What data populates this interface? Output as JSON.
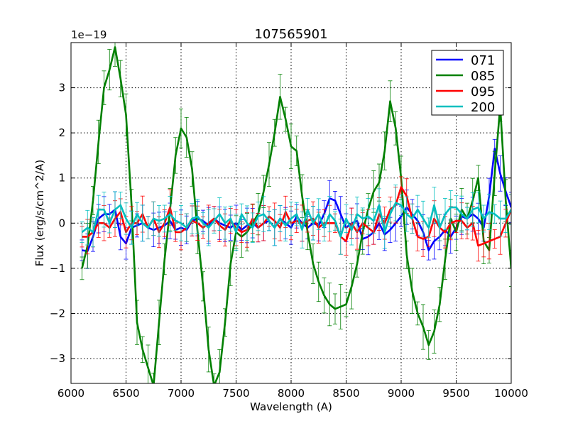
{
  "chart_data": {
    "type": "line",
    "title": "107565901",
    "xlabel": "Wavelength (A)",
    "ylabel": "Flux (erg/s/cm^2/A)",
    "y_multiplier": "1e−19",
    "xlim": [
      6000,
      10000
    ],
    "ylim": [
      -3.55,
      4.0
    ],
    "grid": true,
    "legend_position": "top-right",
    "xticks": [
      6000,
      6500,
      7000,
      7500,
      8000,
      8500,
      9000,
      9500,
      10000
    ],
    "xtick_labels": [
      "6000",
      "6500",
      "7000",
      "7500",
      "8000",
      "8500",
      "9000",
      "9500",
      "10000"
    ],
    "yticks": [
      -3,
      -2,
      -1,
      0,
      1,
      2,
      3
    ],
    "ytick_labels": [
      "−3",
      "−2",
      "−1",
      "0",
      "1",
      "2",
      "3"
    ],
    "x": [
      6100,
      6150,
      6200,
      6250,
      6300,
      6350,
      6400,
      6450,
      6500,
      6550,
      6600,
      6650,
      6700,
      6750,
      6800,
      6850,
      6900,
      6950,
      7000,
      7050,
      7100,
      7150,
      7200,
      7250,
      7300,
      7350,
      7400,
      7450,
      7500,
      7550,
      7600,
      7650,
      7700,
      7750,
      7800,
      7850,
      7900,
      7950,
      8000,
      8050,
      8100,
      8150,
      8200,
      8250,
      8300,
      8350,
      8400,
      8450,
      8500,
      8550,
      8600,
      8650,
      8700,
      8750,
      8800,
      8850,
      8900,
      8950,
      9000,
      9050,
      9100,
      9150,
      9200,
      9250,
      9300,
      9350,
      9400,
      9450,
      9500,
      9550,
      9600,
      9650,
      9700,
      9750,
      9800,
      9850,
      9900,
      9950,
      10000
    ],
    "series": [
      {
        "name": "071",
        "color": "#0000ff",
        "values": [
          -0.6,
          -0.62,
          -0.3,
          0.1,
          0.2,
          0.2,
          0.3,
          -0.3,
          -0.45,
          -0.1,
          -0.05,
          0,
          -0.1,
          -0.15,
          -0.1,
          -0.05,
          0.05,
          -0.15,
          -0.1,
          -0.15,
          0.05,
          0.1,
          0.05,
          -0.05,
          0.1,
          0,
          -0.05,
          -0.1,
          0,
          -0.15,
          -0.05,
          0,
          -0.1,
          0,
          0.05,
          -0.1,
          0.1,
          0,
          -0.1,
          0.15,
          0,
          -0.1,
          0,
          -0.05,
          0.2,
          0.55,
          0.5,
          0.2,
          -0.1,
          0,
          0.05,
          -0.35,
          -0.3,
          -0.2,
          0,
          -0.25,
          -0.15,
          0,
          0.15,
          0.35,
          0.2,
          0.05,
          -0.2,
          -0.6,
          -0.4,
          -0.3,
          -0.15,
          -0.3,
          -0.1,
          0.15,
          0.1,
          0.2,
          0.1,
          -0.1,
          0.6,
          1.65,
          1.1,
          0.7,
          0.35
        ]
      },
      {
        "name": "085",
        "color": "#008000",
        "values": [
          -1.0,
          -0.5,
          0.5,
          1.8,
          3.0,
          3.4,
          3.9,
          3.2,
          2.4,
          0.4,
          -2.2,
          -2.8,
          -3.2,
          -3.6,
          -2.2,
          -0.8,
          0.3,
          1.5,
          2.1,
          1.9,
          1.2,
          -0.2,
          -1.4,
          -2.8,
          -3.6,
          -3.3,
          -2.2,
          -0.9,
          -0.2,
          -0.3,
          -0.2,
          0,
          0.2,
          0.7,
          1.3,
          2.0,
          2.8,
          2.3,
          1.7,
          1.6,
          0.6,
          -0.2,
          -0.9,
          -1.3,
          -1.6,
          -1.8,
          -1.9,
          -1.85,
          -1.8,
          -1.4,
          -0.9,
          -0.2,
          0.3,
          0.7,
          0.9,
          1.6,
          2.7,
          2.1,
          1.0,
          -0.7,
          -1.5,
          -2.0,
          -2.3,
          -2.7,
          -2.4,
          -1.8,
          -0.8,
          0.1,
          -0.2,
          0.3,
          0.1,
          0.5,
          1.0,
          -0.4,
          -0.6,
          1.1,
          2.6,
          0.5,
          -1.0
        ]
      },
      {
        "name": "095",
        "color": "#ff0000",
        "values": [
          -0.3,
          -0.3,
          -0.2,
          0,
          0,
          -0.1,
          0.1,
          0.25,
          -0.2,
          0,
          0,
          0.2,
          -0.1,
          0.1,
          -0.2,
          0,
          0.35,
          -0.2,
          -0.2,
          -0.1,
          0.05,
          0,
          -0.1,
          0,
          0.1,
          -0.05,
          -0.15,
          0.05,
          -0.1,
          -0.2,
          -0.15,
          0.1,
          -0.1,
          0,
          0.15,
          0.05,
          -0.1,
          0.25,
          0,
          0.05,
          0,
          0.05,
          0.1,
          -0.1,
          0,
          0,
          0,
          -0.3,
          -0.4,
          0,
          -0.2,
          0,
          -0.1,
          -0.2,
          0.2,
          0,
          0.3,
          0.4,
          0.8,
          0.6,
          0.1,
          -0.3,
          -0.35,
          -0.3,
          0.1,
          -0.1,
          -0.2,
          0,
          0.05,
          0.05,
          -0.1,
          0,
          -0.5,
          -0.45,
          -0.4,
          -0.35,
          -0.3,
          0,
          0.3
        ]
      },
      {
        "name": "200",
        "color": "#00bfbf",
        "values": [
          -0.2,
          -0.1,
          -0.2,
          0.3,
          0.3,
          0,
          0.3,
          0.4,
          0.1,
          -0.1,
          0.2,
          0,
          -0.1,
          0.1,
          0.05,
          0.1,
          0.2,
          0.05,
          0,
          -0.1,
          0.1,
          0.15,
          0,
          -0.1,
          0.05,
          0.2,
          0,
          0.1,
          -0.2,
          0.2,
          0,
          -0.1,
          0.15,
          0.2,
          0.05,
          -0.1,
          0.1,
          -0.05,
          0.1,
          0.2,
          -0.15,
          0.3,
          0,
          0.2,
          -0.1,
          0.2,
          0.05,
          -0.3,
          0.1,
          -0.15,
          0.2,
          0.1,
          0.15,
          0.05,
          0.4,
          -0.2,
          0.2,
          0.45,
          0.4,
          0.2,
          0.1,
          0.3,
          0.1,
          -0.1,
          0.4,
          -0.1,
          0.2,
          0.35,
          0.35,
          0.2,
          0.1,
          0.3,
          0.35,
          0.1,
          0.25,
          0.2,
          0.1,
          0.1,
          0.3
        ]
      }
    ]
  }
}
